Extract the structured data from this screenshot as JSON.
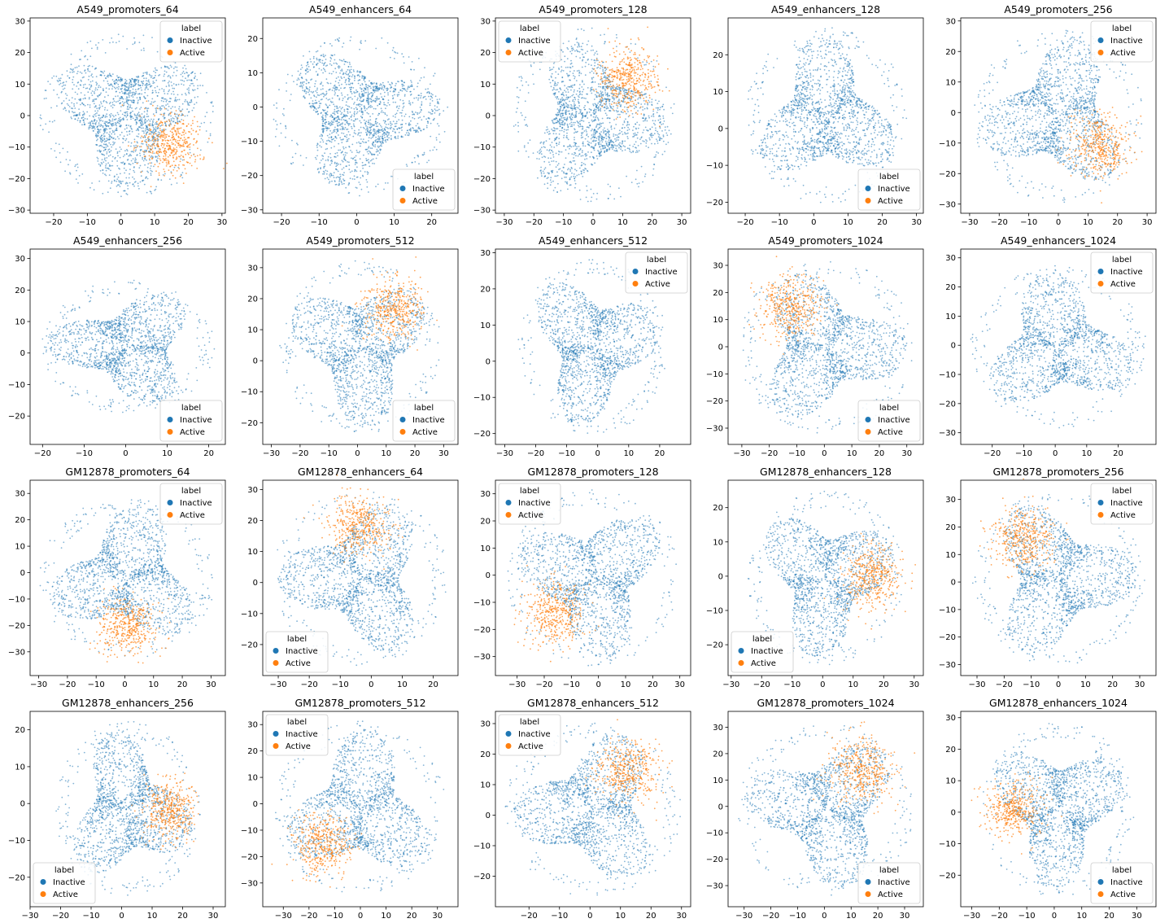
{
  "colors": {
    "Inactive": "#1f77b4",
    "Active": "#ff7f0e"
  },
  "chart_data": [
    {
      "type": "scatter",
      "title": "A549_promoters_64",
      "xlim": [
        -27,
        31
      ],
      "ylim": [
        -31,
        31
      ],
      "xticks": [
        -20,
        -10,
        0,
        10,
        20,
        30
      ],
      "yticks": [
        -30,
        -20,
        -10,
        0,
        10,
        20,
        30
      ],
      "legend": "upper right",
      "active": "lower-right",
      "legend_title": "label",
      "legend_entries": [
        "Inactive",
        "Active"
      ]
    },
    {
      "type": "scatter",
      "title": "A549_enhancers_64",
      "xlim": [
        -25,
        27
      ],
      "ylim": [
        -31,
        26
      ],
      "xticks": [
        -20,
        -10,
        0,
        10,
        20
      ],
      "yticks": [
        -30,
        -20,
        -10,
        0,
        10,
        20
      ],
      "legend": "lower right",
      "active": "none",
      "legend_title": "label",
      "legend_entries": [
        "Inactive",
        "Active"
      ]
    },
    {
      "type": "scatter",
      "title": "A549_promoters_128",
      "xlim": [
        -33,
        33
      ],
      "ylim": [
        -31,
        31
      ],
      "xticks": [
        -30,
        -20,
        -10,
        0,
        10,
        20,
        30
      ],
      "yticks": [
        -30,
        -20,
        -10,
        0,
        10,
        20,
        30
      ],
      "legend": "upper left",
      "active": "upper-right",
      "legend_title": "label",
      "legend_entries": [
        "Inactive",
        "Active"
      ]
    },
    {
      "type": "scatter",
      "title": "A549_enhancers_128",
      "xlim": [
        -25,
        32
      ],
      "ylim": [
        -23,
        30
      ],
      "xticks": [
        -20,
        -10,
        0,
        10,
        20,
        30
      ],
      "yticks": [
        -20,
        -10,
        0,
        10,
        20
      ],
      "legend": "lower right",
      "active": "none",
      "legend_title": "label",
      "legend_entries": [
        "Inactive",
        "Active"
      ]
    },
    {
      "type": "scatter",
      "title": "A549_promoters_256",
      "xlim": [
        -33,
        33
      ],
      "ylim": [
        -33,
        31
      ],
      "xticks": [
        -30,
        -20,
        -10,
        0,
        10,
        20,
        30
      ],
      "yticks": [
        -30,
        -20,
        -10,
        0,
        10,
        20,
        30
      ],
      "legend": "upper right",
      "active": "lower-right",
      "legend_title": "label",
      "legend_entries": [
        "Inactive",
        "Active"
      ]
    },
    {
      "type": "scatter",
      "title": "A549_enhancers_256",
      "xlim": [
        -23,
        24
      ],
      "ylim": [
        -29,
        33
      ],
      "xticks": [
        -20,
        -10,
        0,
        10,
        20
      ],
      "yticks": [
        -20,
        -10,
        0,
        10,
        20,
        30
      ],
      "legend": "lower right",
      "active": "none",
      "legend_title": "label",
      "legend_entries": [
        "Inactive",
        "Active"
      ]
    },
    {
      "type": "scatter",
      "title": "A549_promoters_512",
      "xlim": [
        -33,
        35
      ],
      "ylim": [
        -27,
        36
      ],
      "xticks": [
        -30,
        -20,
        -10,
        0,
        10,
        20,
        30
      ],
      "yticks": [
        -20,
        -10,
        0,
        10,
        20,
        30
      ],
      "legend": "lower right",
      "active": "upper-right",
      "legend_title": "label",
      "legend_entries": [
        "Inactive",
        "Active"
      ]
    },
    {
      "type": "scatter",
      "title": "A549_enhancers_512",
      "xlim": [
        -33,
        30
      ],
      "ylim": [
        -23,
        31
      ],
      "xticks": [
        -30,
        -20,
        -10,
        0,
        10,
        20
      ],
      "yticks": [
        -20,
        -10,
        0,
        10,
        20,
        30
      ],
      "legend": "upper right",
      "active": "none",
      "legend_title": "label",
      "legend_entries": [
        "Inactive",
        "Active"
      ]
    },
    {
      "type": "scatter",
      "title": "A549_promoters_1024",
      "xlim": [
        -35,
        36
      ],
      "ylim": [
        -36,
        36
      ],
      "xticks": [
        -30,
        -20,
        -10,
        0,
        10,
        20,
        30
      ],
      "yticks": [
        -30,
        -20,
        -10,
        0,
        10,
        20,
        30
      ],
      "legend": "lower right",
      "active": "upper-left",
      "legend_title": "label",
      "legend_entries": [
        "Inactive",
        "Active"
      ]
    },
    {
      "type": "scatter",
      "title": "A549_enhancers_1024",
      "xlim": [
        -30,
        32
      ],
      "ylim": [
        -34,
        33
      ],
      "xticks": [
        -20,
        -10,
        0,
        10,
        20
      ],
      "yticks": [
        -30,
        -20,
        -10,
        0,
        10,
        20,
        30
      ],
      "legend": "upper right",
      "active": "none",
      "legend_title": "label",
      "legend_entries": [
        "Inactive",
        "Active"
      ]
    },
    {
      "type": "scatter",
      "title": "GM12878_promoters_64",
      "xlim": [
        -33,
        35
      ],
      "ylim": [
        -39,
        35
      ],
      "xticks": [
        -30,
        -20,
        -10,
        0,
        10,
        20,
        30
      ],
      "yticks": [
        -30,
        -20,
        -10,
        0,
        10,
        20,
        30
      ],
      "legend": "upper right",
      "active": "lower",
      "legend_title": "label",
      "legend_entries": [
        "Inactive",
        "Active"
      ]
    },
    {
      "type": "scatter",
      "title": "GM12878_enhancers_64",
      "xlim": [
        -35,
        28
      ],
      "ylim": [
        -30,
        33
      ],
      "xticks": [
        -30,
        -20,
        -10,
        0,
        10,
        20
      ],
      "yticks": [
        -20,
        -10,
        0,
        10,
        20,
        30
      ],
      "legend": "lower left",
      "active": "top",
      "legend_title": "label",
      "legend_entries": [
        "Inactive",
        "Active"
      ]
    },
    {
      "type": "scatter",
      "title": "GM12878_promoters_128",
      "xlim": [
        -38,
        34
      ],
      "ylim": [
        -37,
        35
      ],
      "xticks": [
        -30,
        -20,
        -10,
        0,
        10,
        20,
        30
      ],
      "yticks": [
        -30,
        -20,
        -10,
        0,
        10,
        20,
        30
      ],
      "legend": "upper left",
      "active": "lower-left",
      "legend_title": "label",
      "legend_entries": [
        "Inactive",
        "Active"
      ]
    },
    {
      "type": "scatter",
      "title": "GM12878_enhancers_128",
      "xlim": [
        -31,
        33
      ],
      "ylim": [
        -29,
        28
      ],
      "xticks": [
        -30,
        -20,
        -10,
        0,
        10,
        20,
        30
      ],
      "yticks": [
        -20,
        -10,
        0,
        10,
        20
      ],
      "legend": "lower left",
      "active": "right",
      "legend_title": "label",
      "legend_entries": [
        "Inactive",
        "Active"
      ]
    },
    {
      "type": "scatter",
      "title": "GM12878_promoters_256",
      "xlim": [
        -36,
        36
      ],
      "ylim": [
        -34,
        37
      ],
      "xticks": [
        -30,
        -20,
        -10,
        0,
        10,
        20,
        30
      ],
      "yticks": [
        -30,
        -20,
        -10,
        0,
        10,
        20,
        30
      ],
      "legend": "upper right",
      "active": "upper-left",
      "legend_title": "label",
      "legend_entries": [
        "Inactive",
        "Active"
      ]
    },
    {
      "type": "scatter",
      "title": "GM12878_enhancers_256",
      "xlim": [
        -30,
        34
      ],
      "ylim": [
        -28,
        25
      ],
      "xticks": [
        -30,
        -20,
        -10,
        0,
        10,
        20,
        30
      ],
      "yticks": [
        -20,
        -10,
        0,
        10,
        20
      ],
      "legend": "lower left",
      "active": "right",
      "legend_title": "label",
      "legend_entries": [
        "Inactive",
        "Active"
      ]
    },
    {
      "type": "scatter",
      "title": "GM12878_promoters_512",
      "xlim": [
        -38,
        38
      ],
      "ylim": [
        -39,
        35
      ],
      "xticks": [
        -30,
        -20,
        -10,
        0,
        10,
        20,
        30
      ],
      "yticks": [
        -30,
        -20,
        -10,
        0,
        10,
        20,
        30
      ],
      "legend": "upper left",
      "active": "lower-left",
      "legend_title": "label",
      "legend_entries": [
        "Inactive",
        "Active"
      ]
    },
    {
      "type": "scatter",
      "title": "GM12878_enhancers_512",
      "xlim": [
        -31,
        33
      ],
      "ylim": [
        -30,
        34
      ],
      "xticks": [
        -20,
        -10,
        0,
        10,
        20,
        30
      ],
      "yticks": [
        -20,
        -10,
        0,
        10,
        20,
        30
      ],
      "legend": "upper left",
      "active": "upper-right",
      "legend_title": "label",
      "legend_entries": [
        "Inactive",
        "Active"
      ]
    },
    {
      "type": "scatter",
      "title": "GM12878_promoters_1024",
      "xlim": [
        -36,
        37
      ],
      "ylim": [
        -38,
        36
      ],
      "xticks": [
        -30,
        -20,
        -10,
        0,
        10,
        20,
        30
      ],
      "yticks": [
        -30,
        -20,
        -10,
        0,
        10,
        20,
        30
      ],
      "legend": "lower right",
      "active": "upper-right",
      "legend_title": "label",
      "legend_entries": [
        "Inactive",
        "Active"
      ]
    },
    {
      "type": "scatter",
      "title": "GM12878_enhancers_1024",
      "xlim": [
        -34,
        37
      ],
      "ylim": [
        -30,
        32
      ],
      "xticks": [
        -30,
        -20,
        -10,
        0,
        10,
        20,
        30
      ],
      "yticks": [
        -20,
        -10,
        0,
        10,
        20,
        30
      ],
      "legend": "lower right",
      "active": "left",
      "legend_title": "label",
      "legend_entries": [
        "Inactive",
        "Active"
      ]
    }
  ]
}
